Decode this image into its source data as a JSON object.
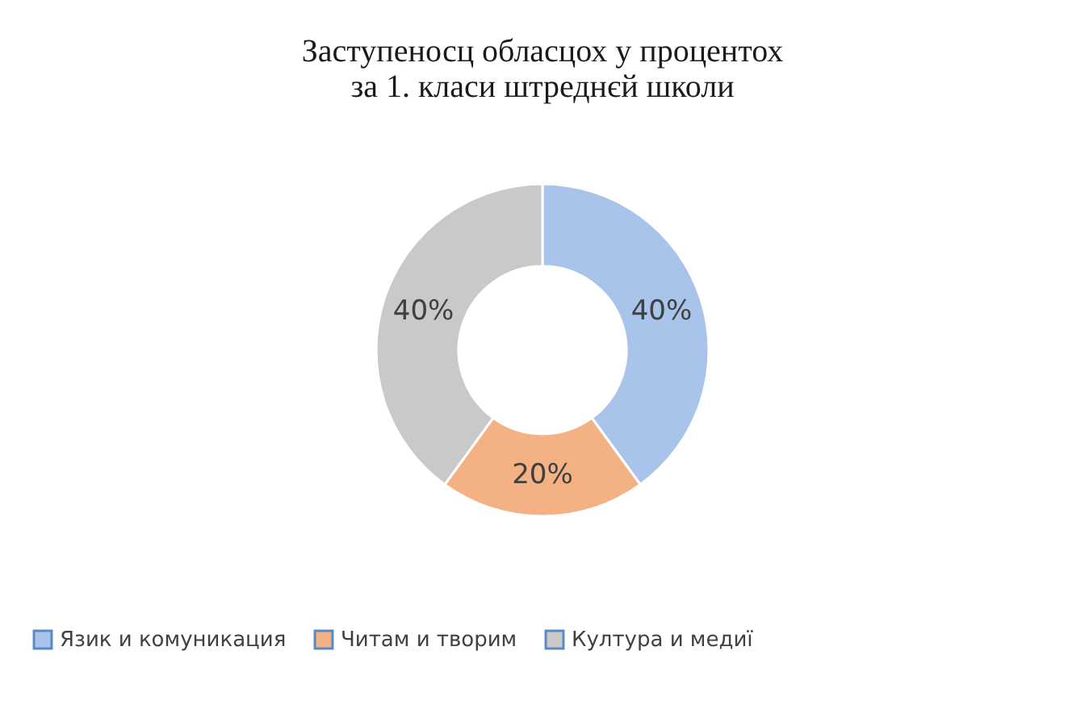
{
  "chart_data": {
    "type": "donut",
    "title": "Заступеносц обласцох у процентох\nза 1. класи штреднєй школи",
    "categories": [
      "Язик и комуникация",
      "Читам и творим",
      "Култура и медиї"
    ],
    "values": [
      40,
      20,
      40
    ],
    "colors": [
      "#a9c4eb",
      "#f4b183",
      "#c9c9c9"
    ],
    "value_labels": [
      "40%",
      "20%",
      "40%"
    ],
    "legend": "bottom"
  }
}
